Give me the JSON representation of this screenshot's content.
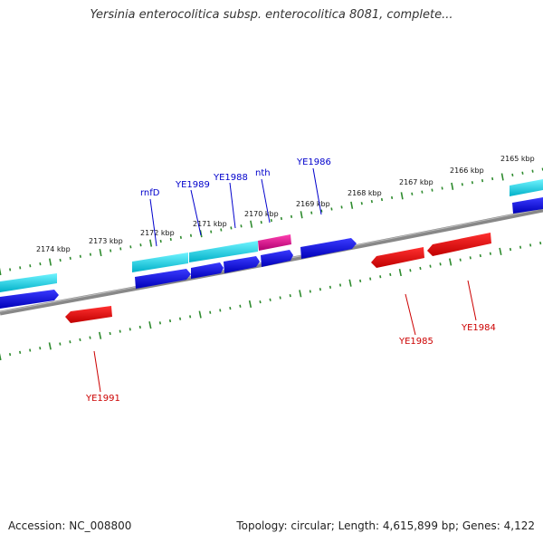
{
  "title": "Yersinia enterocolitica subsp. enterocolitica 8081, complete...",
  "footer": {
    "accession": "Accession: NC_008800",
    "summary": "Topology: circular; Length: 4,615,899 bp; Genes: 4,122"
  },
  "scale_labels": [
    "2165 kbp",
    "2166 kbp",
    "2167 kbp",
    "2168 kbp",
    "2169 kbp",
    "2170 kbp",
    "2171 kbp",
    "2172 kbp",
    "2173 kbp",
    "2174 kbp"
  ],
  "gene_labels": {
    "forward": [
      "rnfD",
      "YE1989",
      "YE1988",
      "nth",
      "YE1986"
    ],
    "reverse": [
      "YE1991",
      "YE1985",
      "YE1984"
    ]
  },
  "colors": {
    "backbone": "#777777",
    "tick": "#2e8b2e",
    "forward_gene": "#0000e0",
    "reverse_gene": "#e00000",
    "feature_cyan": "#00d8e8",
    "feature_magenta": "#e0108a",
    "forward_label": "#0000cc",
    "reverse_label": "#cc0000"
  }
}
